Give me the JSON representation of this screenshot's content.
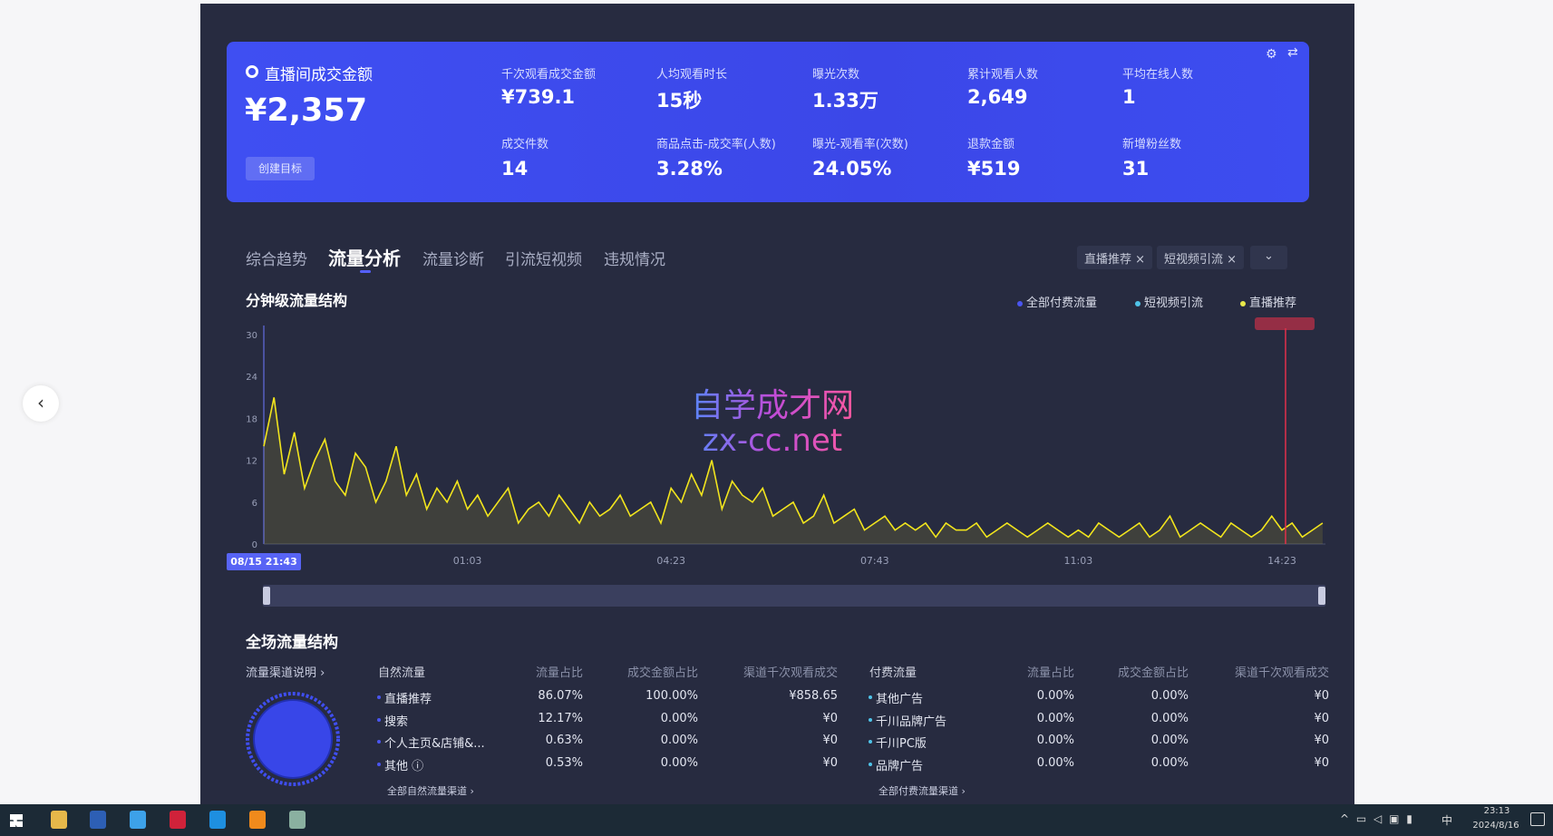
{
  "overview": {
    "title": "直播间成交金额",
    "value": "¥2,357",
    "create_goal": "创建目标",
    "metrics": [
      {
        "label": "千次观看成交金额",
        "value": "¥739.1"
      },
      {
        "label": "人均观看时长",
        "value": "15秒"
      },
      {
        "label": "曝光次数",
        "value": "1.33万"
      },
      {
        "label": "累计观看人数",
        "value": "2,649"
      },
      {
        "label": "平均在线人数",
        "value": "1"
      },
      {
        "label": "成交件数",
        "value": "14"
      },
      {
        "label": "商品点击-成交率(人数)",
        "value": "3.28%"
      },
      {
        "label": "曝光-观看率(次数)",
        "value": "24.05%"
      },
      {
        "label": "退款金额",
        "value": "¥519"
      },
      {
        "label": "新增粉丝数",
        "value": "31"
      }
    ]
  },
  "tabs": [
    {
      "label": "综合趋势"
    },
    {
      "label": "流量分析",
      "active": true
    },
    {
      "label": "流量诊断"
    },
    {
      "label": "引流短视频"
    },
    {
      "label": "违规情况"
    }
  ],
  "filters": [
    {
      "label": "直播推荐 ×"
    },
    {
      "label": "短视频引流 ×"
    }
  ],
  "chart_section_title": "分钟级流量结构",
  "legend": [
    {
      "label": "全部付费流量",
      "color": "#4a55f0"
    },
    {
      "label": "短视频引流",
      "color": "#4fc3e8"
    },
    {
      "label": "直播推荐",
      "color": "#e8e84a"
    }
  ],
  "watermark": {
    "line1": "自学成才网",
    "line2": "zx-cc.net"
  },
  "chart_data": {
    "type": "line",
    "start_label": "08/15 21:43",
    "x_start": "21:43",
    "x_step_minutes": 10,
    "xticks": [
      "01:03",
      "04:23",
      "07:43",
      "11:03",
      "14:23"
    ],
    "yticks": [
      0,
      6,
      12,
      18,
      24,
      30
    ],
    "ylim": [
      0,
      30
    ],
    "series": [
      {
        "name": "直播推荐",
        "color": "#f2e51d",
        "values": [
          14,
          21,
          10,
          16,
          8,
          12,
          15,
          9,
          7,
          13,
          11,
          6,
          9,
          14,
          7,
          10,
          5,
          8,
          6,
          9,
          5,
          7,
          4,
          6,
          8,
          3,
          5,
          6,
          4,
          7,
          5,
          3,
          6,
          4,
          5,
          7,
          4,
          5,
          6,
          3,
          8,
          6,
          10,
          7,
          12,
          5,
          9,
          7,
          6,
          8,
          4,
          5,
          6,
          3,
          4,
          7,
          3,
          4,
          5,
          2,
          3,
          4,
          2,
          3,
          2,
          3,
          1,
          3,
          2,
          2,
          3,
          1,
          2,
          3,
          2,
          1,
          2,
          3,
          2,
          1,
          2,
          1,
          3,
          2,
          1,
          2,
          3,
          1,
          2,
          4,
          1,
          2,
          3,
          2,
          1,
          3,
          2,
          1,
          2,
          4,
          2,
          3,
          1,
          2,
          3
        ]
      }
    ],
    "marker_time": "14:23",
    "marker_color": "#e0304a"
  },
  "structure": {
    "title": "全场流量结构",
    "channel_help": "流量渠道说明 ›",
    "natural": {
      "header": [
        "自然流量",
        "流量占比",
        "成交金额占比",
        "渠道千次观看成交"
      ],
      "rows": [
        [
          "直播推荐",
          "86.07%",
          "100.00%",
          "¥858.65"
        ],
        [
          "搜索",
          "12.17%",
          "0.00%",
          "¥0"
        ],
        [
          "个人主页&店铺&...",
          "0.63%",
          "0.00%",
          "¥0"
        ],
        [
          "其他 ⓘ",
          "0.53%",
          "0.00%",
          "¥0"
        ]
      ],
      "link": "全部自然流量渠道 ›",
      "dot": "#4a55f0"
    },
    "paid": {
      "header": [
        "付费流量",
        "流量占比",
        "成交金额占比",
        "渠道千次观看成交"
      ],
      "rows": [
        [
          "其他广告",
          "0.00%",
          "0.00%",
          "¥0"
        ],
        [
          "千川品牌广告",
          "0.00%",
          "0.00%",
          "¥0"
        ],
        [
          "千川PC版",
          "0.00%",
          "0.00%",
          "¥0"
        ],
        [
          "品牌广告",
          "0.00%",
          "0.00%",
          "¥0"
        ]
      ],
      "link": "全部付费流量渠道 ›",
      "dot": "#4fc3e8"
    }
  },
  "taskbar": {
    "time": "23:13",
    "date": "2024/8/16",
    "ime": "中"
  }
}
